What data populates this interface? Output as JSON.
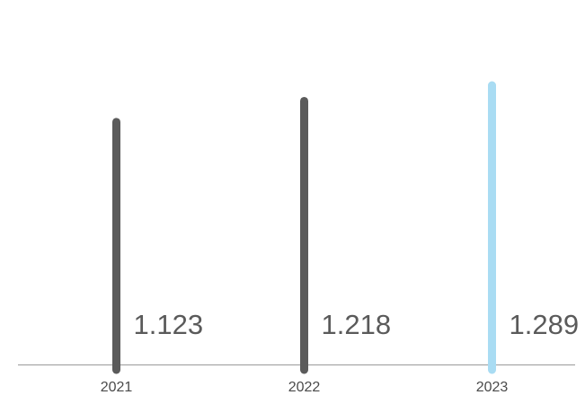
{
  "chart_data": {
    "type": "bar",
    "title": "",
    "xlabel": "",
    "ylabel": "",
    "categories": [
      "2021",
      "2022",
      "2023"
    ],
    "values": [
      1.123,
      1.218,
      1.289
    ],
    "value_labels": [
      "1.123",
      "1.218",
      "1.289"
    ],
    "ylim": [
      0,
      1.35
    ],
    "grid": false,
    "legend": "none",
    "colors": {
      "default_bar": "#5b5b5b",
      "highlight_bar": "#a9dcf3",
      "axis": "#9a9a9a",
      "label_text": "#5a5a5a",
      "tick_text": "#4a4a4a"
    },
    "highlight_index": 2
  }
}
